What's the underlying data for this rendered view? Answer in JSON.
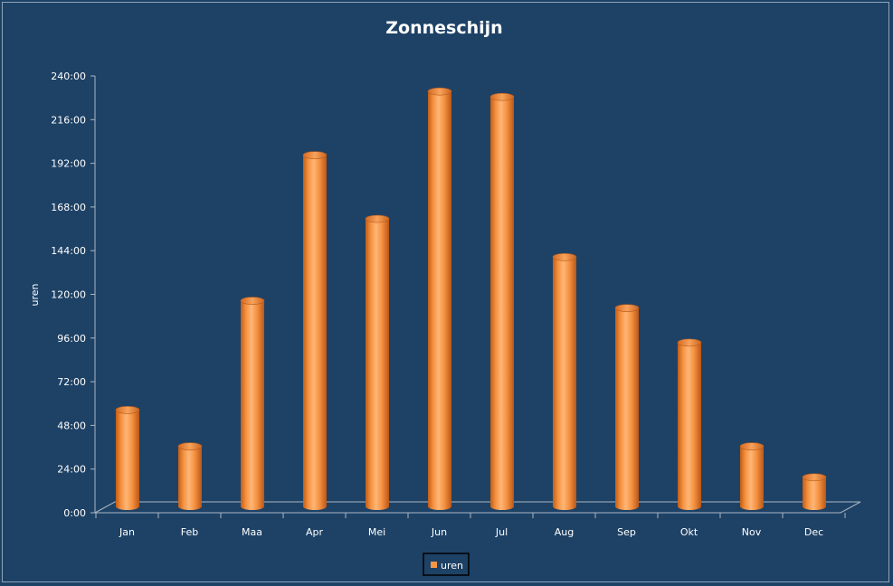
{
  "chart_data": {
    "type": "bar",
    "title": "Zonneschijn",
    "xlabel": "",
    "ylabel": "uren",
    "categories": [
      "Jan",
      "Feb",
      "Maa",
      "Apr",
      "Mei",
      "Jun",
      "Jul",
      "Aug",
      "Sep",
      "Okt",
      "Nov",
      "Dec"
    ],
    "series": [
      {
        "name": "uren",
        "values": [
          53,
          33,
          113,
          193,
          158,
          228,
          225,
          137,
          109,
          90,
          33,
          16
        ]
      }
    ],
    "yticks": [
      "0:00",
      "24:00",
      "48:00",
      "72:00",
      "96:00",
      "120:00",
      "144:00",
      "168:00",
      "192:00",
      "216:00",
      "240:00"
    ],
    "ylim": [
      0,
      240
    ],
    "grid": false,
    "legend": "bottom",
    "bar_color": "#f79646",
    "background": "#1e4266"
  }
}
